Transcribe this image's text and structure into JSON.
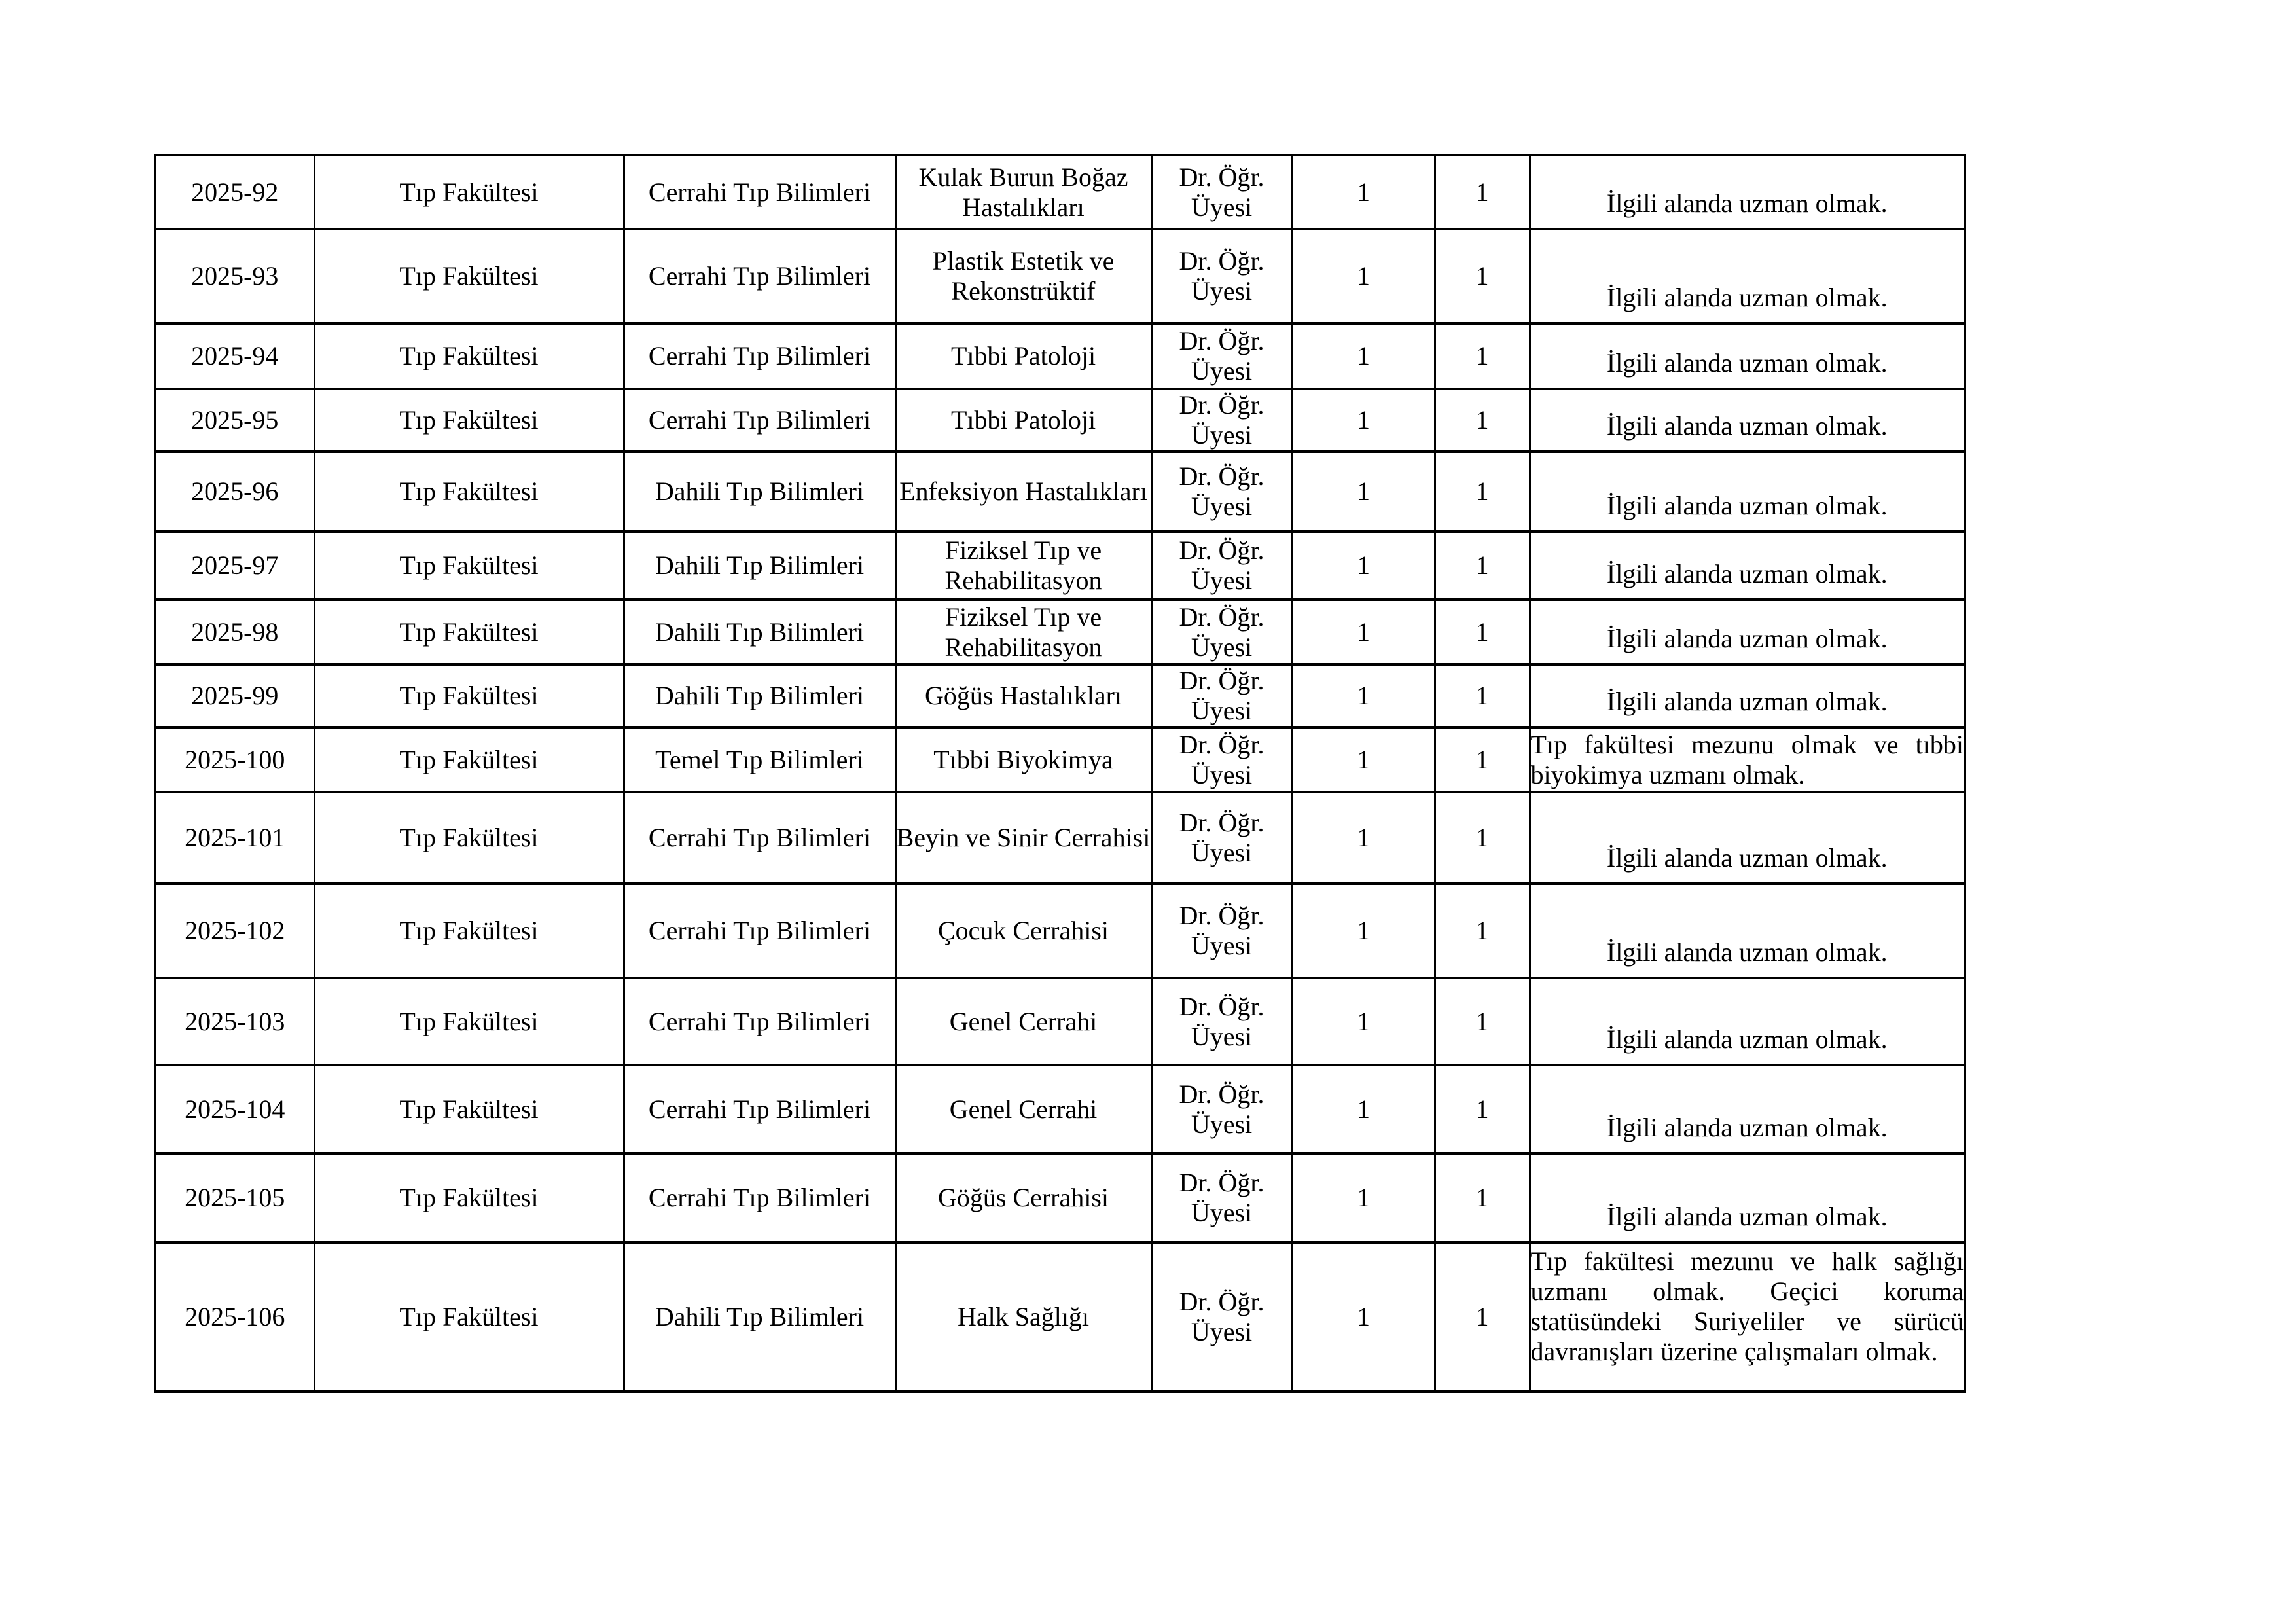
{
  "document": {
    "background_color": "#ffffff",
    "text_color": "#000000",
    "border_color": "#000000",
    "language": "tr"
  },
  "table": {
    "description": "Akademik ilan tablosu (devam sayfası, başlık satırı yok)",
    "rows": [
      {
        "announcement_no": "2025-92",
        "faculty": "Tıp Fakültesi",
        "department": "Cerrahi Tıp Bilimleri",
        "field": "Kulak Burun Boğaz Hastalıkları",
        "title": "Dr. Öğr. Üyesi",
        "count_1": "1",
        "count_2": "1",
        "requirement": "İlgili alanda uzman olmak."
      },
      {
        "announcement_no": "2025-93",
        "faculty": "Tıp Fakültesi",
        "department": "Cerrahi Tıp Bilimleri",
        "field": "Plastik Estetik ve Rekonstrüktif",
        "title": "Dr. Öğr. Üyesi",
        "count_1": "1",
        "count_2": "1",
        "requirement": "İlgili alanda uzman olmak."
      },
      {
        "announcement_no": "2025-94",
        "faculty": "Tıp Fakültesi",
        "department": "Cerrahi Tıp Bilimleri",
        "field": "Tıbbi Patoloji",
        "title": "Dr. Öğr. Üyesi",
        "count_1": "1",
        "count_2": "1",
        "requirement": "İlgili alanda uzman olmak."
      },
      {
        "announcement_no": "2025-95",
        "faculty": "Tıp Fakültesi",
        "department": "Cerrahi Tıp Bilimleri",
        "field": "Tıbbi Patoloji",
        "title": "Dr. Öğr. Üyesi",
        "count_1": "1",
        "count_2": "1",
        "requirement": "İlgili alanda uzman olmak."
      },
      {
        "announcement_no": "2025-96",
        "faculty": "Tıp Fakültesi",
        "department": "Dahili Tıp Bilimleri",
        "field": "Enfeksiyon Hastalıkları",
        "title": "Dr. Öğr. Üyesi",
        "count_1": "1",
        "count_2": "1",
        "requirement": "İlgili alanda uzman olmak."
      },
      {
        "announcement_no": "2025-97",
        "faculty": "Tıp Fakültesi",
        "department": "Dahili Tıp Bilimleri",
        "field": "Fiziksel Tıp ve Rehabilitasyon",
        "title": "Dr. Öğr. Üyesi",
        "count_1": "1",
        "count_2": "1",
        "requirement": "İlgili alanda uzman olmak."
      },
      {
        "announcement_no": "2025-98",
        "faculty": "Tıp Fakültesi",
        "department": "Dahili Tıp Bilimleri",
        "field": "Fiziksel Tıp ve Rehabilitasyon",
        "title": "Dr. Öğr. Üyesi",
        "count_1": "1",
        "count_2": "1",
        "requirement": "İlgili alanda uzman olmak."
      },
      {
        "announcement_no": "2025-99",
        "faculty": "Tıp Fakültesi",
        "department": "Dahili Tıp Bilimleri",
        "field": "Göğüs Hastalıkları",
        "title": "Dr. Öğr. Üyesi",
        "count_1": "1",
        "count_2": "1",
        "requirement": "İlgili alanda uzman olmak."
      },
      {
        "announcement_no": "2025-100",
        "faculty": "Tıp Fakültesi",
        "department": "Temel Tıp Bilimleri",
        "field": "Tıbbi Biyokimya",
        "title": "Dr. Öğr. Üyesi",
        "count_1": "1",
        "count_2": "1",
        "requirement": "Tıp fakültesi mezunu olmak ve tıbbi biyokimya uzmanı olmak."
      },
      {
        "announcement_no": "2025-101",
        "faculty": "Tıp Fakültesi",
        "department": "Cerrahi Tıp Bilimleri",
        "field": "Beyin ve Sinir Cerrahisi",
        "title": "Dr. Öğr. Üyesi",
        "count_1": "1",
        "count_2": "1",
        "requirement": "İlgili alanda uzman olmak."
      },
      {
        "announcement_no": "2025-102",
        "faculty": "Tıp Fakültesi",
        "department": "Cerrahi Tıp Bilimleri",
        "field": "Çocuk Cerrahisi",
        "title": "Dr. Öğr. Üyesi",
        "count_1": "1",
        "count_2": "1",
        "requirement": "İlgili alanda uzman olmak."
      },
      {
        "announcement_no": "2025-103",
        "faculty": "Tıp Fakültesi",
        "department": "Cerrahi Tıp Bilimleri",
        "field": "Genel Cerrahi",
        "title": "Dr. Öğr. Üyesi",
        "count_1": "1",
        "count_2": "1",
        "requirement": "İlgili alanda uzman olmak."
      },
      {
        "announcement_no": "2025-104",
        "faculty": "Tıp Fakültesi",
        "department": "Cerrahi Tıp Bilimleri",
        "field": "Genel Cerrahi",
        "title": "Dr. Öğr. Üyesi",
        "count_1": "1",
        "count_2": "1",
        "requirement": "İlgili alanda uzman olmak."
      },
      {
        "announcement_no": "2025-105",
        "faculty": "Tıp Fakültesi",
        "department": "Cerrahi Tıp Bilimleri",
        "field": "Göğüs Cerrahisi",
        "title": "Dr. Öğr. Üyesi",
        "count_1": "1",
        "count_2": "1",
        "requirement": "İlgili alanda uzman olmak."
      },
      {
        "announcement_no": "2025-106",
        "faculty": "Tıp Fakültesi",
        "department": "Dahili Tıp Bilimleri",
        "field": "Halk Sağlığı",
        "title": "Dr. Öğr. Üyesi",
        "count_1": "1",
        "count_2": "1",
        "requirement": "Tıp fakültesi mezunu ve halk sağlığı uzmanı olmak. Geçici koruma statüsündeki Suriyeliler ve sürücü davranışları üzerine çalışmaları olmak."
      }
    ]
  }
}
